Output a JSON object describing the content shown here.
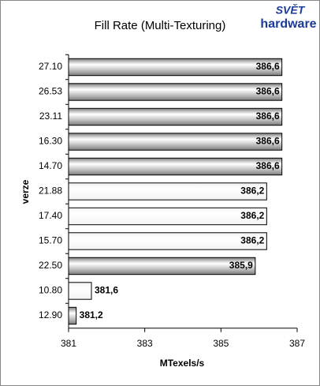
{
  "chart_data": {
    "type": "bar",
    "orientation": "horizontal",
    "title": "Fill Rate (Multi-Texturing)",
    "logo": [
      "SVĚT",
      "hardware"
    ],
    "categories": [
      "27.10",
      "26.53",
      "23.11",
      "16.30",
      "14.70",
      "21.88",
      "17.40",
      "15.70",
      "22.50",
      "10.80",
      "12.90"
    ],
    "values": [
      386.6,
      386.6,
      386.6,
      386.6,
      386.6,
      386.2,
      386.2,
      386.2,
      385.9,
      381.6,
      381.2
    ],
    "value_labels": [
      "386,6",
      "386,6",
      "386,6",
      "386,6",
      "386,6",
      "386,2",
      "386,2",
      "386,2",
      "385,9",
      "381,6",
      "381,2"
    ],
    "colors": [
      "#7a7a7a",
      "#7a7a7a",
      "#7a7a7a",
      "#7a7a7a",
      "#7a7a7a",
      "#f2f2f2",
      "#f2f2f2",
      "#f2f2f2",
      "#7a7a7a",
      "#f2f2f2",
      "#7a7a7a"
    ],
    "xlim": [
      381,
      387
    ],
    "xticks": [
      381,
      383,
      385,
      387
    ],
    "xlabel": "MTexels/s",
    "ylabel": "verze",
    "grid": false
  }
}
